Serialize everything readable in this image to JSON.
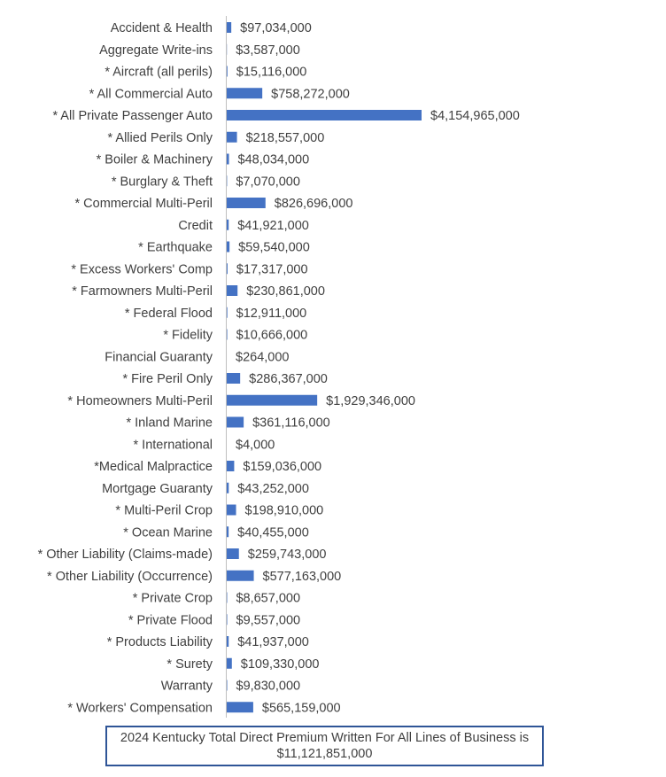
{
  "chart_data": {
    "type": "bar",
    "orientation": "horizontal",
    "categories": [
      "Accident & Health",
      "Aggregate Write-ins",
      "* Aircraft (all perils)",
      "* All Commercial Auto",
      "* All Private Passenger Auto",
      "* Allied Perils Only",
      "* Boiler & Machinery",
      "* Burglary & Theft",
      "* Commercial Multi-Peril",
      "Credit",
      "* Earthquake",
      "* Excess Workers' Comp",
      "* Farmowners Multi-Peril",
      "* Federal Flood",
      "* Fidelity",
      "Financial Guaranty",
      "* Fire Peril Only",
      "* Homeowners Multi-Peril",
      "* Inland Marine",
      "* International",
      "*Medical Malpractice",
      "Mortgage Guaranty",
      "* Multi-Peril Crop",
      "* Ocean Marine",
      "* Other Liability (Claims-made)",
      "* Other Liability (Occurrence)",
      "* Private Crop",
      "* Private Flood",
      "* Products Liability",
      "* Surety",
      "Warranty",
      "* Workers' Compensation"
    ],
    "values": [
      97034000,
      3587000,
      15116000,
      758272000,
      4154965000,
      218557000,
      48034000,
      7070000,
      826696000,
      41921000,
      59540000,
      17317000,
      230861000,
      12911000,
      10666000,
      264000,
      286367000,
      1929346000,
      361116000,
      4000,
      159036000,
      43252000,
      198910000,
      40455000,
      259743000,
      577163000,
      8657000,
      9557000,
      41937000,
      109330000,
      9830000,
      565159000
    ],
    "value_labels": [
      "$97,034,000",
      "$3,587,000",
      "$15,116,000",
      "$758,272,000",
      "$4,154,965,000",
      "$218,557,000",
      "$48,034,000",
      "$7,070,000",
      "$826,696,000",
      "$41,921,000",
      "$59,540,000",
      "$17,317,000",
      "$230,861,000",
      "$12,911,000",
      "$10,666,000",
      "$264,000",
      "$286,367,000",
      "$1,929,346,000",
      "$361,116,000",
      "$4,000",
      "$159,036,000",
      "$43,252,000",
      "$198,910,000",
      "$40,455,000",
      "$259,743,000",
      "$577,163,000",
      "$8,657,000",
      "$9,557,000",
      "$41,937,000",
      "$109,330,000",
      "$9,830,000",
      "$565,159,000"
    ],
    "xlim": [
      0,
      4154965000
    ],
    "grid": false,
    "legend": "none",
    "bar_color": "#4472c4",
    "axis_color": "#bfbfbf"
  },
  "note": {
    "line1": "2024 Kentucky Total Direct Premium Written For All Lines of Business is",
    "line2": "$11,121,851,000"
  }
}
